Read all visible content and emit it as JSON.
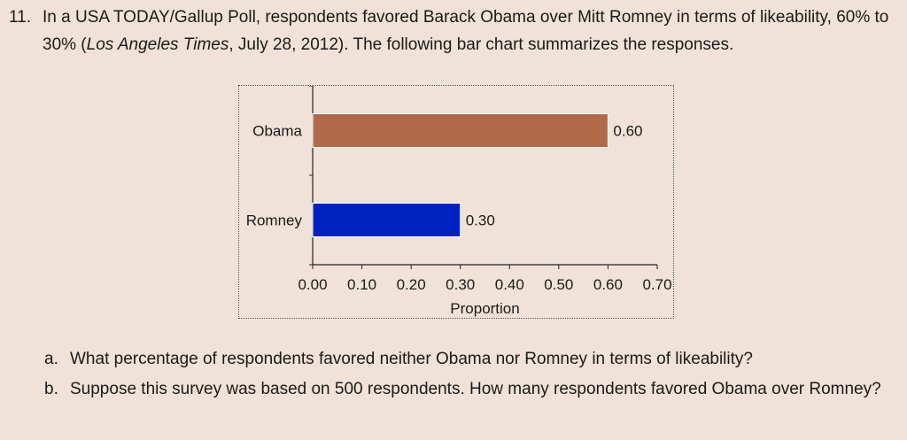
{
  "problem": {
    "number": "11.",
    "text_before_source": "In a USA TODAY/Gallup Poll, respondents favored Barack Obama over Mitt Romney in terms of likeability, 60% to 30% (",
    "source": "Los Angeles Times",
    "text_after_source": ", July 28, 2012). The following bar chart summarizes the responses."
  },
  "chart_data": {
    "type": "bar",
    "orientation": "horizontal",
    "categories": [
      "Obama",
      "Romney"
    ],
    "values": [
      0.6,
      0.3
    ],
    "data_labels": [
      "0.60",
      "0.30"
    ],
    "colors": [
      "#b06a4a",
      "#0022c0"
    ],
    "xlabel": "Proportion",
    "ylabel": "",
    "xlim": [
      0,
      0.7
    ],
    "xticks": [
      "0.00",
      "0.10",
      "0.20",
      "0.30",
      "0.40",
      "0.50",
      "0.60",
      "0.70"
    ],
    "grid": false
  },
  "questions": [
    {
      "label": "a.",
      "text": "What percentage of respondents favored neither Obama nor Romney in terms of likeability?"
    },
    {
      "label": "b.",
      "text": "Suppose this survey was based on 500 respondents. How many respondents favored Obama over Romney?"
    }
  ]
}
